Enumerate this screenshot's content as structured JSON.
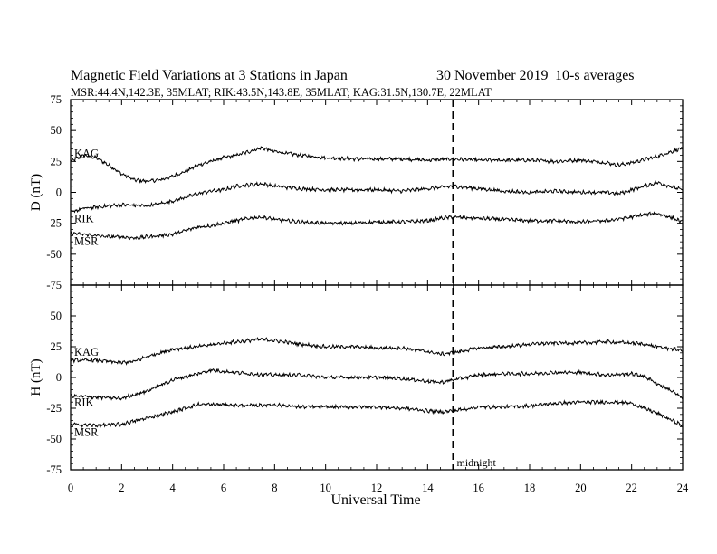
{
  "chart_data": {
    "type": "line",
    "title": "Magnetic Field Variations at 3 Stations in Japan",
    "date": "30 November 2019",
    "averaging": "10-s averages",
    "subtitle": "MSR:44.4N,142.3E, 35MLAT;  RIK:43.5N,143.8E, 35MLAT;  KAG:31.5N,130.7E, 22MLAT",
    "xlabel": "Universal Time",
    "xlim": [
      0,
      24
    ],
    "x_ticks": [
      "0",
      "2",
      "4",
      "6",
      "8",
      "10",
      "12",
      "14",
      "16",
      "18",
      "20",
      "22",
      "24"
    ],
    "annotations": [
      {
        "x": 15,
        "text": "midnight",
        "style": "dashed vertical line"
      }
    ],
    "panels": [
      {
        "ylabel": "D (nT)",
        "ylim": [
          -75,
          75
        ],
        "y_ticks": [
          "75",
          "50",
          "25",
          "0",
          "-25",
          "-50",
          "-75"
        ],
        "series": [
          {
            "name": "KAG",
            "x": [
              0,
              0.5,
              1,
              1.5,
              2,
              2.5,
              3,
              3.5,
              4,
              4.5,
              5,
              5.5,
              6,
              6.5,
              7,
              7.5,
              8,
              9,
              10,
              11,
              12,
              13,
              14,
              15,
              16,
              17,
              18,
              19,
              20,
              21,
              21.5,
              22,
              23,
              24
            ],
            "y": [
              25,
              30,
              28,
              22,
              15,
              10,
              9,
              10,
              13,
              17,
              22,
              25,
              28,
              30,
              33,
              36,
              33,
              30,
              28,
              27,
              27,
              27,
              26,
              27,
              26,
              26,
              26,
              25,
              26,
              24,
              22,
              24,
              29,
              36
            ]
          },
          {
            "name": "RIK",
            "x": [
              0,
              0.5,
              1,
              2,
              3,
              4,
              4.5,
              5,
              5.5,
              6,
              6.5,
              7,
              7.5,
              8,
              9,
              10,
              11,
              12,
              13,
              14,
              15,
              16,
              17,
              18,
              19,
              20,
              21,
              21.5,
              22,
              22.5,
              23,
              23.5,
              24
            ],
            "y": [
              -16,
              -13,
              -12,
              -10,
              -11,
              -7,
              -4,
              -1,
              1,
              2,
              5,
              6,
              7,
              5,
              3,
              2,
              2,
              2,
              1,
              3,
              5,
              3,
              1,
              0,
              1,
              0,
              0,
              -1,
              2,
              5,
              8,
              5,
              2
            ]
          },
          {
            "name": "MSR",
            "x": [
              0,
              0.5,
              1,
              1.5,
              2,
              2.5,
              3,
              4,
              4.5,
              5,
              5.5,
              6,
              6.5,
              7,
              7.5,
              8,
              9,
              10,
              11,
              12,
              13,
              14,
              14.5,
              15,
              16,
              17,
              18,
              19,
              20,
              21,
              22,
              22.5,
              23,
              23.5,
              24
            ],
            "y": [
              -33,
              -34,
              -35,
              -36,
              -36,
              -37,
              -36,
              -34,
              -31,
              -28,
              -27,
              -25,
              -23,
              -21,
              -20,
              -22,
              -24,
              -25,
              -25,
              -24,
              -24,
              -23,
              -21,
              -20,
              -21,
              -22,
              -23,
              -23,
              -24,
              -23,
              -20,
              -18,
              -17,
              -20,
              -24
            ]
          }
        ]
      },
      {
        "ylabel": "H (nT)",
        "ylim": [
          -75,
          75
        ],
        "y_ticks": [
          "75",
          "50",
          "25",
          "0",
          "-25",
          "-50",
          "-75"
        ],
        "series": [
          {
            "name": "KAG",
            "x": [
              0,
              1,
              2,
              2.5,
              3,
              4,
              5,
              6,
              7,
              7.5,
              8,
              9,
              10,
              11,
              12,
              13,
              14,
              14.5,
              15,
              15.5,
              16,
              17,
              18,
              19,
              20,
              21,
              22,
              22.5,
              23,
              24
            ],
            "y": [
              14,
              14,
              12,
              13,
              17,
              23,
              25,
              28,
              30,
              31,
              30,
              27,
              25,
              25,
              24,
              24,
              21,
              19,
              20,
              22,
              24,
              25,
              27,
              28,
              28,
              29,
              28,
              27,
              25,
              22
            ]
          },
          {
            "name": "RIK",
            "x": [
              0,
              1,
              2,
              3,
              4,
              5,
              5.5,
              6,
              7,
              8,
              9,
              10,
              11,
              12,
              13,
              14,
              14.5,
              15,
              16,
              17,
              18,
              19,
              20,
              21,
              22,
              22.5,
              23,
              23.5,
              24
            ],
            "y": [
              -15,
              -16,
              -17,
              -11,
              -2,
              3,
              6,
              5,
              3,
              2,
              2,
              0,
              0,
              0,
              -1,
              -3,
              -4,
              -2,
              2,
              3,
              3,
              4,
              4,
              2,
              3,
              1,
              -5,
              -10,
              -17
            ]
          },
          {
            "name": "MSR",
            "x": [
              0,
              1,
              2,
              3,
              4,
              4.5,
              5,
              6,
              7,
              8,
              9,
              10,
              11,
              12,
              13,
              14,
              14.5,
              15,
              16,
              17,
              18,
              19,
              20,
              21,
              21.5,
              22,
              23,
              24
            ],
            "y": [
              -38,
              -39,
              -38,
              -33,
              -28,
              -25,
              -22,
              -22,
              -23,
              -22,
              -24,
              -24,
              -24,
              -24,
              -25,
              -27,
              -28,
              -27,
              -24,
              -24,
              -23,
              -21,
              -20,
              -20,
              -20,
              -21,
              -29,
              -39
            ]
          }
        ]
      }
    ],
    "line_color": "#000000"
  }
}
